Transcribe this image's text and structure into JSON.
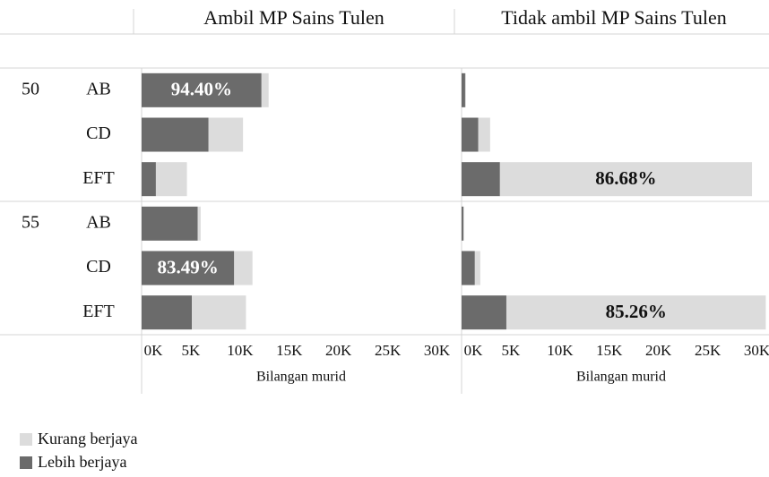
{
  "chart_data": {
    "type": "bar",
    "orientation": "horizontal",
    "stacked": true,
    "panels": [
      "Ambil MP Sains Tulen",
      "Tidak ambil MP Sains Tulen"
    ],
    "groups": [
      {
        "name": "50",
        "categories": [
          "AB",
          "CD",
          "EFT"
        ]
      },
      {
        "name": "55",
        "categories": [
          "AB",
          "CD",
          "EFT"
        ]
      }
    ],
    "series": [
      {
        "name": "Kurang berjaya",
        "color": "#dcdcdc",
        "values": [
          [
            720,
            3500,
            3150,
            300,
            1860,
            5500
          ],
          [
            90,
            1200,
            25600,
            90,
            550,
            26350
          ]
        ]
      },
      {
        "name": "Lebih berjaya",
        "color": "#6b6b6b",
        "values": [
          [
            12180,
            6800,
            1450,
            5700,
            9400,
            5100
          ],
          [
            360,
            1700,
            3900,
            180,
            1350,
            4550
          ]
        ]
      }
    ],
    "annotations": [
      {
        "text": "94.40%",
        "panel": 0,
        "index": 0,
        "series": 1
      },
      {
        "text": "83.49%",
        "panel": 0,
        "index": 4,
        "series": 1
      },
      {
        "text": "86.68%",
        "panel": 1,
        "index": 2,
        "series": 0
      },
      {
        "text": "85.26%",
        "panel": 1,
        "index": 5,
        "series": 0
      }
    ],
    "xlabel": "Bilangan murid",
    "xlim": [
      0,
      31500
    ],
    "xticks": [
      {
        "value": 0,
        "label": "0K"
      },
      {
        "value": 5000,
        "label": "5K"
      },
      {
        "value": 10000,
        "label": "10K"
      },
      {
        "value": 15000,
        "label": "15K"
      },
      {
        "value": 20000,
        "label": "20K"
      },
      {
        "value": 25000,
        "label": "25K"
      },
      {
        "value": 30000,
        "label": "30K"
      }
    ]
  }
}
